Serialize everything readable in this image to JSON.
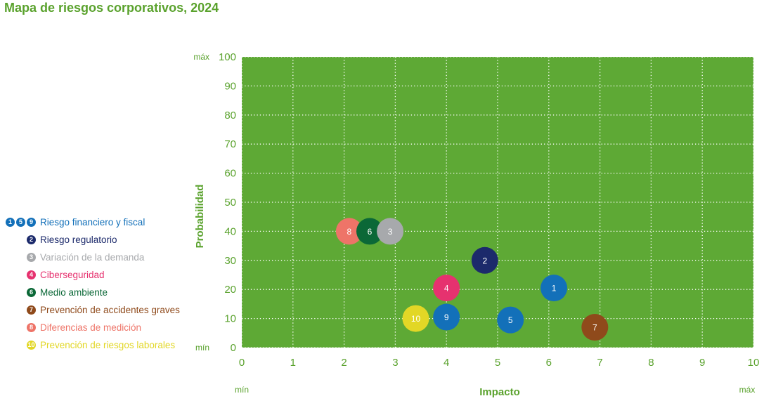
{
  "chart_data": {
    "type": "scatter",
    "title": "Mapa de riesgos corporativos, 2024",
    "xlabel": "Impacto",
    "ylabel": "Probabilidad",
    "x_ticks": [
      "0",
      "1",
      "2",
      "3",
      "4",
      "5",
      "6",
      "7",
      "8",
      "9",
      "10"
    ],
    "y_ticks": [
      "0",
      "10",
      "20",
      "30",
      "40",
      "50",
      "60",
      "70",
      "80",
      "90",
      "100"
    ],
    "x_min_label": "mín",
    "x_max_label": "máx",
    "y_min_label": "mín",
    "y_max_label": "máx",
    "xlim": [
      0,
      10
    ],
    "ylim": [
      0,
      100
    ],
    "grid": true,
    "plot_background": "#5ea935",
    "points": [
      {
        "label": "8",
        "x": 2.1,
        "y": 40,
        "color": "#ee7468"
      },
      {
        "label": "6",
        "x": 2.5,
        "y": 40,
        "color": "#0b6837"
      },
      {
        "label": "3",
        "x": 2.9,
        "y": 40,
        "color": "#a7a9ac"
      },
      {
        "label": "2",
        "x": 4.75,
        "y": 30,
        "color": "#1c2a6b"
      },
      {
        "label": "1",
        "x": 6.1,
        "y": 20.5,
        "color": "#1370b9"
      },
      {
        "label": "4",
        "x": 4.0,
        "y": 20.5,
        "color": "#e6326f"
      },
      {
        "label": "10",
        "x": 3.4,
        "y": 10,
        "color": "#e2d726"
      },
      {
        "label": "9",
        "x": 4.0,
        "y": 10.5,
        "color": "#1370b9"
      },
      {
        "label": "5",
        "x": 5.25,
        "y": 9.5,
        "color": "#1370b9"
      },
      {
        "label": "7",
        "x": 6.9,
        "y": 7,
        "color": "#8f4a1b"
      }
    ]
  },
  "legend": [
    {
      "dots": [
        {
          "n": "1",
          "color": "#1370b9"
        },
        {
          "n": "5",
          "color": "#1370b9"
        },
        {
          "n": "9",
          "color": "#1370b9"
        }
      ],
      "label": "Riesgo financiero y fiscal",
      "color": "#1370b9"
    },
    {
      "dots": [
        {
          "n": "2",
          "color": "#1c2a6b"
        }
      ],
      "label": "Riesgo regulatorio",
      "color": "#1c2a6b"
    },
    {
      "dots": [
        {
          "n": "3",
          "color": "#a7a9ac"
        }
      ],
      "label": "Variación de la demanda",
      "color": "#a7a9ac"
    },
    {
      "dots": [
        {
          "n": "4",
          "color": "#e6326f"
        }
      ],
      "label": "Ciberseguridad",
      "color": "#e6326f"
    },
    {
      "dots": [
        {
          "n": "6",
          "color": "#0b6837"
        }
      ],
      "label": "Medio ambiente",
      "color": "#0b6837"
    },
    {
      "dots": [
        {
          "n": "7",
          "color": "#8f4a1b"
        }
      ],
      "label": "Prevención de accidentes graves",
      "color": "#8f4a1b"
    },
    {
      "dots": [
        {
          "n": "8",
          "color": "#ee7468"
        }
      ],
      "label": "Diferencias de medición",
      "color": "#ee7468"
    },
    {
      "dots": [
        {
          "n": "10",
          "color": "#e2d726"
        }
      ],
      "label": "Prevención de riesgos laborales",
      "color": "#e2d726"
    }
  ],
  "colors": {
    "accent": "#5aa22d",
    "axis_text": "#5aa22d"
  }
}
